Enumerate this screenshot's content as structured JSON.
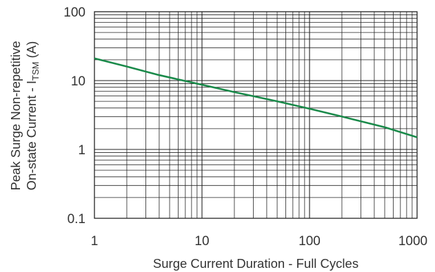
{
  "chart_data": {
    "type": "line",
    "title": "",
    "xlabel": "Surge Current Duration - Full Cycles",
    "ylabel_line1": "Peak Surge Non-repetitive",
    "ylabel_line2_prefix": "On-state Current - I",
    "ylabel_line2_sub": "TSM",
    "ylabel_line2_suffix": " (A)",
    "x_scale": "log",
    "y_scale": "log",
    "xlim": [
      1,
      1000
    ],
    "ylim": [
      0.1,
      100
    ],
    "x_ticks": [
      "1",
      "10",
      "100",
      "1000"
    ],
    "y_ticks": [
      "0.1",
      "1",
      "10",
      "100"
    ],
    "grid": true,
    "line_color": "#1a8a4a",
    "series": [
      {
        "x": [
          1,
          2,
          4,
          10,
          20,
          50,
          100,
          200,
          500,
          1000
        ],
        "y": [
          21,
          16,
          12,
          8.7,
          6.8,
          5.0,
          3.9,
          3.0,
          2.1,
          1.5
        ]
      }
    ]
  }
}
